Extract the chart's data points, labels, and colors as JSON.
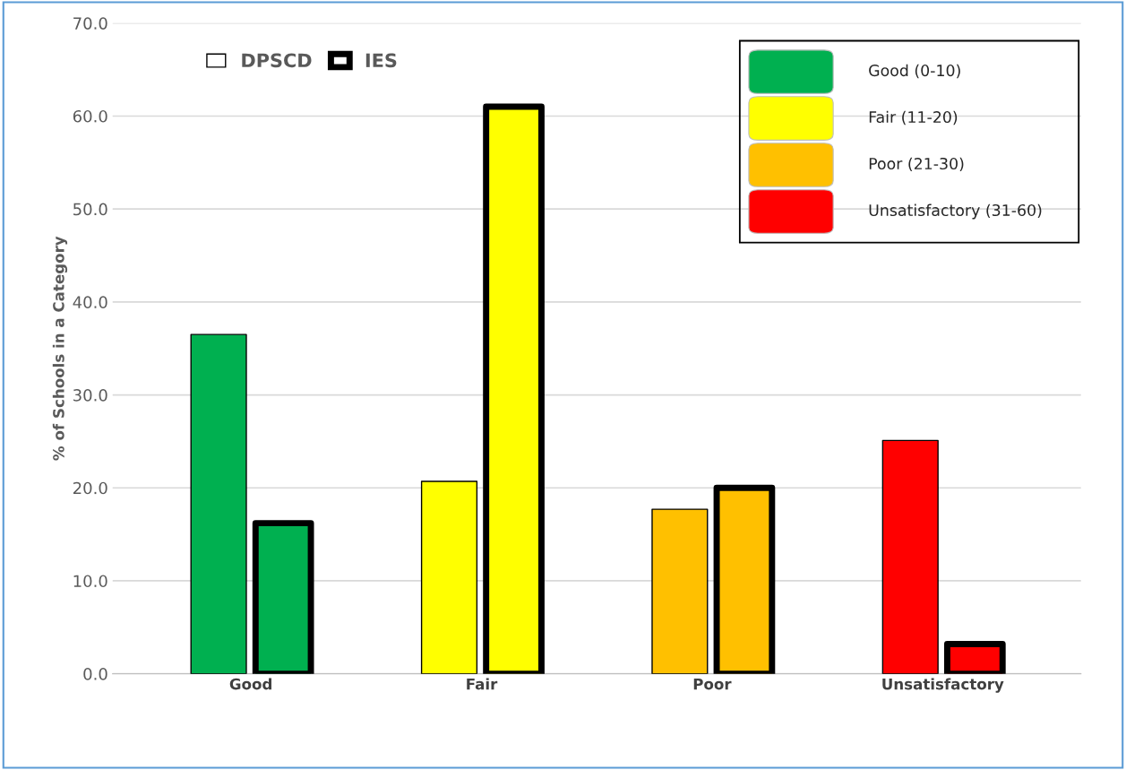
{
  "chart_data": {
    "type": "bar",
    "ylabel": "% of Schools in a Category",
    "categories": [
      "Good",
      "Fair",
      "Poor",
      "Unsatisfactory"
    ],
    "series": [
      {
        "name": "DPSCD",
        "colors": [
          "#00b050",
          "#ffff00",
          "#ffc000",
          "#ff0000"
        ],
        "values": [
          36.5,
          20.7,
          17.7,
          25.1
        ]
      },
      {
        "name": "IES",
        "colors": [
          "#00b050",
          "#ffff00",
          "#ffc000",
          "#ff0000"
        ],
        "values": [
          16.2,
          61.0,
          20.0,
          3.2
        ]
      }
    ],
    "ylim": [
      0,
      70
    ],
    "yticks": [
      {
        "value": 0,
        "label": "0.0"
      },
      {
        "value": 10,
        "label": "10.0"
      },
      {
        "value": 20,
        "label": "20.0"
      },
      {
        "value": 30,
        "label": "30.0"
      },
      {
        "value": 40,
        "label": "40.0"
      },
      {
        "value": 50,
        "label": "50.0"
      },
      {
        "value": 60,
        "label": "60.0"
      },
      {
        "value": 70,
        "label": "70.0"
      }
    ],
    "grid": "y",
    "legend": "top left",
    "annotations": [
      "Good (0-10)",
      "Fair (11-20)",
      "Poor (21-30)",
      "Unsatisfactory (31-60)"
    ]
  }
}
